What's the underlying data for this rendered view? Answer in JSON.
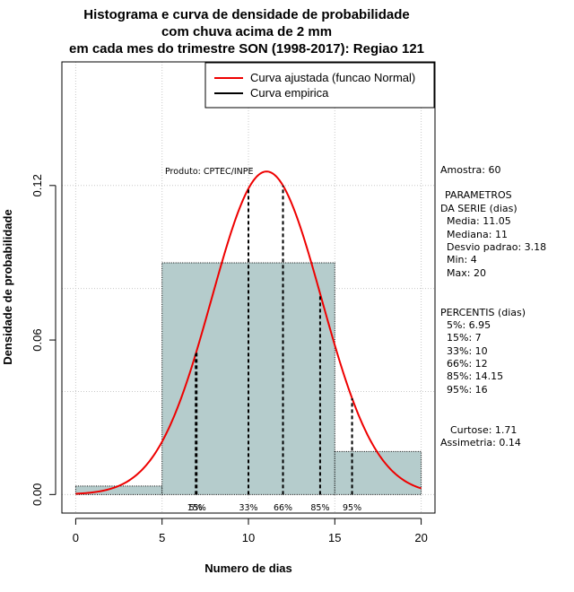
{
  "chart_data": {
    "type": "bar",
    "title_lines": [
      "Histograma e curva de densidade de probabilidade",
      "com chuva acima de 2 mm",
      "em cada mes do trimestre SON (1998-2017): Regiao 121"
    ],
    "xlabel": "Numero de dias",
    "ylabel": "Densidade de probabilidade",
    "xlim": [
      -0.8,
      20.8
    ],
    "ylim": [
      -0.0072,
      0.168
    ],
    "x_ticks": [
      0,
      5,
      10,
      15,
      20
    ],
    "x_tick_labels": [
      "0",
      "5",
      "10",
      "15",
      "20"
    ],
    "y_ticks": [
      0.0,
      0.06,
      0.12
    ],
    "y_tick_labels": [
      "0.00",
      "0.06",
      "0.12"
    ],
    "grid": true,
    "bins": [
      {
        "start": 0,
        "end": 5,
        "density": 0.0033
      },
      {
        "start": 5,
        "end": 15,
        "density": 0.09
      },
      {
        "start": 15,
        "end": 20,
        "density": 0.0167
      }
    ],
    "normal_fit": {
      "mean": 11.05,
      "sd": 3.18
    },
    "percentile_lines": [
      {
        "label": "5%",
        "x": 6.95
      },
      {
        "label": "15%",
        "x": 7
      },
      {
        "label": "33%",
        "x": 10
      },
      {
        "label": "66%",
        "x": 12
      },
      {
        "label": "85%",
        "x": 14.15
      },
      {
        "label": "95%",
        "x": 16
      }
    ],
    "legend": {
      "position": "top-right",
      "entries": [
        {
          "label": "Curva ajustada (funcao Normal)",
          "color": "#ee0000"
        },
        {
          "label": "Curva empirica",
          "color": "#000000"
        }
      ]
    },
    "annotation": "Produto: CPTEC/INPE",
    "colors": {
      "bar_fill": "#b5cccc",
      "curve": "#ee0000",
      "grid": "#c8c8c8"
    }
  },
  "stats": {
    "amostra": "Amostra: 60",
    "param_title_1": "PARAMETROS",
    "param_title_2": "DA SERIE (dias)",
    "media": "Media: 11.05",
    "mediana": "Mediana: 11",
    "desvio": "Desvio padrao: 3.18",
    "min": "Min: 4",
    "max": "Max: 20",
    "percentis_title": "PERCENTIS (dias)",
    "p5": "5%: 6.95",
    "p15": "15%: 7",
    "p33": "33%: 10",
    "p66": "66%: 12",
    "p85": "85%: 14.15",
    "p95": "95%: 16",
    "curtose": "Curtose: 1.71",
    "assimetria": "Assimetria: 0.14"
  }
}
